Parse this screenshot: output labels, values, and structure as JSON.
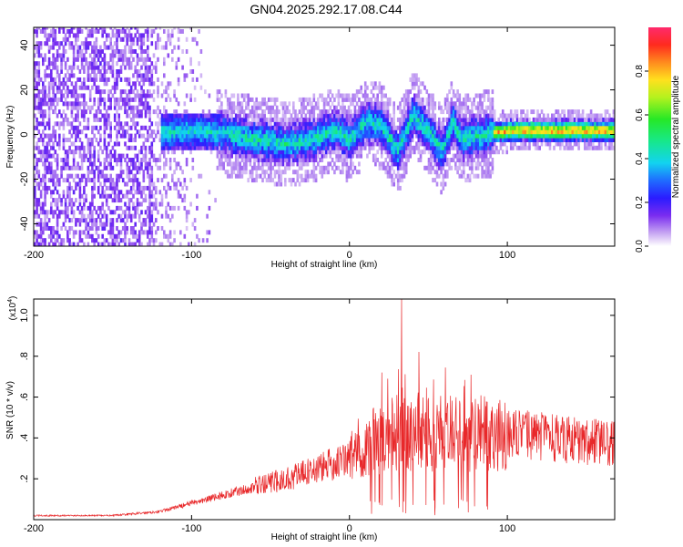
{
  "title": "GN04.2025.292.17.08.C44",
  "chart_data": [
    {
      "type": "heatmap",
      "name": "spectrogram",
      "xlabel": "Height of straight line (km)",
      "ylabel": "Frequency (Hz)",
      "xlim": [
        -200,
        168
      ],
      "ylim": [
        -50,
        48
      ],
      "xticks": [
        -200,
        -100,
        0,
        100
      ],
      "yticks": [
        -40,
        -20,
        0,
        20,
        40
      ],
      "colorbar": {
        "label": "Normalized spectral amplitude",
        "range": [
          0,
          1
        ],
        "ticks": [
          0.0,
          0.2,
          0.4,
          0.6,
          0.8
        ]
      },
      "ridge": [
        {
          "x": -120,
          "y": 0
        },
        {
          "x": -100,
          "y": 1
        },
        {
          "x": -80,
          "y": 0
        },
        {
          "x": -60,
          "y": -3
        },
        {
          "x": -40,
          "y": -5
        },
        {
          "x": -25,
          "y": -3
        },
        {
          "x": -10,
          "y": 1
        },
        {
          "x": 0,
          "y": -3
        },
        {
          "x": 10,
          "y": 5
        },
        {
          "x": 20,
          "y": 3
        },
        {
          "x": 30,
          "y": -8
        },
        {
          "x": 40,
          "y": 8
        },
        {
          "x": 50,
          "y": 0
        },
        {
          "x": 58,
          "y": -8
        },
        {
          "x": 65,
          "y": 5
        },
        {
          "x": 70,
          "y": -3
        },
        {
          "x": 90,
          "y": 0
        },
        {
          "x": 100,
          "y": 1
        },
        {
          "x": 120,
          "y": 1
        },
        {
          "x": 168,
          "y": 1
        }
      ]
    },
    {
      "type": "line",
      "name": "snr",
      "xlabel": "Height of straight line (km)",
      "ylabel": "SNR (10 * v/v)",
      "yscale_label": "(x10",
      "yscale_exp": "4",
      "yscale_close": ")",
      "xlim": [
        -200,
        168
      ],
      "ylim": [
        0,
        1.08
      ],
      "xticks": [
        -200,
        -100,
        0,
        100
      ],
      "yticks": [
        0.2,
        0.4,
        0.6,
        0.8,
        1.0
      ],
      "color": "#e8282a",
      "envelope": [
        {
          "x": -200,
          "y": 0.02
        },
        {
          "x": -150,
          "y": 0.02
        },
        {
          "x": -120,
          "y": 0.04
        },
        {
          "x": -100,
          "y": 0.08
        },
        {
          "x": -80,
          "y": 0.12
        },
        {
          "x": -60,
          "y": 0.16
        },
        {
          "x": -40,
          "y": 0.2
        },
        {
          "x": -20,
          "y": 0.25
        },
        {
          "x": 0,
          "y": 0.3
        },
        {
          "x": 10,
          "y": 0.38
        },
        {
          "x": 20,
          "y": 0.4
        },
        {
          "x": 40,
          "y": 0.42
        },
        {
          "x": 60,
          "y": 0.42
        },
        {
          "x": 80,
          "y": 0.42
        },
        {
          "x": 100,
          "y": 0.42
        },
        {
          "x": 120,
          "y": 0.41
        },
        {
          "x": 140,
          "y": 0.39
        },
        {
          "x": 168,
          "y": 0.37
        }
      ],
      "peak": {
        "x": 33,
        "y": 1.08
      }
    }
  ]
}
